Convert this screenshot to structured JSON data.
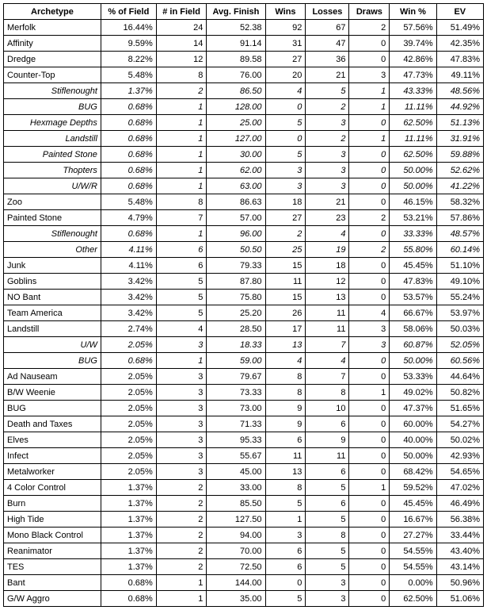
{
  "columns": [
    "Archetype",
    "% of Field",
    "# in Field",
    "Avg. Finish",
    "Wins",
    "Losses",
    "Draws",
    "Win %",
    "EV"
  ],
  "rows": [
    {
      "sub": false,
      "c": [
        "Merfolk",
        "16.44%",
        "24",
        "52.38",
        "92",
        "67",
        "2",
        "57.56%",
        "51.49%"
      ]
    },
    {
      "sub": false,
      "c": [
        "Affinity",
        "9.59%",
        "14",
        "91.14",
        "31",
        "47",
        "0",
        "39.74%",
        "42.35%"
      ]
    },
    {
      "sub": false,
      "c": [
        "Dredge",
        "8.22%",
        "12",
        "89.58",
        "27",
        "36",
        "0",
        "42.86%",
        "47.83%"
      ]
    },
    {
      "sub": false,
      "c": [
        "Counter-Top",
        "5.48%",
        "8",
        "76.00",
        "20",
        "21",
        "3",
        "47.73%",
        "49.11%"
      ]
    },
    {
      "sub": true,
      "c": [
        "Stiflenought",
        "1.37%",
        "2",
        "86.50",
        "4",
        "5",
        "1",
        "43.33%",
        "48.56%"
      ]
    },
    {
      "sub": true,
      "c": [
        "BUG",
        "0.68%",
        "1",
        "128.00",
        "0",
        "2",
        "1",
        "11.11%",
        "44.92%"
      ]
    },
    {
      "sub": true,
      "c": [
        "Hexmage Depths",
        "0.68%",
        "1",
        "25.00",
        "5",
        "3",
        "0",
        "62.50%",
        "51.13%"
      ]
    },
    {
      "sub": true,
      "c": [
        "Landstill",
        "0.68%",
        "1",
        "127.00",
        "0",
        "2",
        "1",
        "11.11%",
        "31.91%"
      ]
    },
    {
      "sub": true,
      "c": [
        "Painted Stone",
        "0.68%",
        "1",
        "30.00",
        "5",
        "3",
        "0",
        "62.50%",
        "59.88%"
      ]
    },
    {
      "sub": true,
      "c": [
        "Thopters",
        "0.68%",
        "1",
        "62.00",
        "3",
        "3",
        "0",
        "50.00%",
        "52.62%"
      ]
    },
    {
      "sub": true,
      "c": [
        "U/W/R",
        "0.68%",
        "1",
        "63.00",
        "3",
        "3",
        "0",
        "50.00%",
        "41.22%"
      ]
    },
    {
      "sub": false,
      "c": [
        "Zoo",
        "5.48%",
        "8",
        "86.63",
        "18",
        "21",
        "0",
        "46.15%",
        "58.32%"
      ]
    },
    {
      "sub": false,
      "c": [
        "Painted Stone",
        "4.79%",
        "7",
        "57.00",
        "27",
        "23",
        "2",
        "53.21%",
        "57.86%"
      ]
    },
    {
      "sub": true,
      "c": [
        "Stiflenought",
        "0.68%",
        "1",
        "96.00",
        "2",
        "4",
        "0",
        "33.33%",
        "48.57%"
      ]
    },
    {
      "sub": true,
      "c": [
        "Other",
        "4.11%",
        "6",
        "50.50",
        "25",
        "19",
        "2",
        "55.80%",
        "60.14%"
      ]
    },
    {
      "sub": false,
      "c": [
        "Junk",
        "4.11%",
        "6",
        "79.33",
        "15",
        "18",
        "0",
        "45.45%",
        "51.10%"
      ]
    },
    {
      "sub": false,
      "c": [
        "Goblins",
        "3.42%",
        "5",
        "87.80",
        "11",
        "12",
        "0",
        "47.83%",
        "49.10%"
      ]
    },
    {
      "sub": false,
      "c": [
        "NO Bant",
        "3.42%",
        "5",
        "75.80",
        "15",
        "13",
        "0",
        "53.57%",
        "55.24%"
      ]
    },
    {
      "sub": false,
      "c": [
        "Team America",
        "3.42%",
        "5",
        "25.20",
        "26",
        "11",
        "4",
        "66.67%",
        "53.97%"
      ]
    },
    {
      "sub": false,
      "c": [
        "Landstill",
        "2.74%",
        "4",
        "28.50",
        "17",
        "11",
        "3",
        "58.06%",
        "50.03%"
      ]
    },
    {
      "sub": true,
      "c": [
        "U/W",
        "2.05%",
        "3",
        "18.33",
        "13",
        "7",
        "3",
        "60.87%",
        "52.05%"
      ]
    },
    {
      "sub": true,
      "c": [
        "BUG",
        "0.68%",
        "1",
        "59.00",
        "4",
        "4",
        "0",
        "50.00%",
        "60.56%"
      ]
    },
    {
      "sub": false,
      "c": [
        "Ad Nauseam",
        "2.05%",
        "3",
        "79.67",
        "8",
        "7",
        "0",
        "53.33%",
        "44.64%"
      ]
    },
    {
      "sub": false,
      "c": [
        "B/W Weenie",
        "2.05%",
        "3",
        "73.33",
        "8",
        "8",
        "1",
        "49.02%",
        "50.82%"
      ]
    },
    {
      "sub": false,
      "c": [
        "BUG",
        "2.05%",
        "3",
        "73.00",
        "9",
        "10",
        "0",
        "47.37%",
        "51.65%"
      ]
    },
    {
      "sub": false,
      "c": [
        "Death and Taxes",
        "2.05%",
        "3",
        "71.33",
        "9",
        "6",
        "0",
        "60.00%",
        "54.27%"
      ]
    },
    {
      "sub": false,
      "c": [
        "Elves",
        "2.05%",
        "3",
        "95.33",
        "6",
        "9",
        "0",
        "40.00%",
        "50.02%"
      ]
    },
    {
      "sub": false,
      "c": [
        "Infect",
        "2.05%",
        "3",
        "55.67",
        "11",
        "11",
        "0",
        "50.00%",
        "42.93%"
      ]
    },
    {
      "sub": false,
      "c": [
        "Metalworker",
        "2.05%",
        "3",
        "45.00",
        "13",
        "6",
        "0",
        "68.42%",
        "54.65%"
      ]
    },
    {
      "sub": false,
      "c": [
        "4 Color Control",
        "1.37%",
        "2",
        "33.00",
        "8",
        "5",
        "1",
        "59.52%",
        "47.02%"
      ]
    },
    {
      "sub": false,
      "c": [
        "Burn",
        "1.37%",
        "2",
        "85.50",
        "5",
        "6",
        "0",
        "45.45%",
        "46.49%"
      ]
    },
    {
      "sub": false,
      "c": [
        "High Tide",
        "1.37%",
        "2",
        "127.50",
        "1",
        "5",
        "0",
        "16.67%",
        "56.38%"
      ]
    },
    {
      "sub": false,
      "c": [
        "Mono Black Control",
        "1.37%",
        "2",
        "94.00",
        "3",
        "8",
        "0",
        "27.27%",
        "33.44%"
      ]
    },
    {
      "sub": false,
      "c": [
        "Reanimator",
        "1.37%",
        "2",
        "70.00",
        "6",
        "5",
        "0",
        "54.55%",
        "43.40%"
      ]
    },
    {
      "sub": false,
      "c": [
        "TES",
        "1.37%",
        "2",
        "72.50",
        "6",
        "5",
        "0",
        "54.55%",
        "43.14%"
      ]
    },
    {
      "sub": false,
      "c": [
        "Bant",
        "0.68%",
        "1",
        "144.00",
        "0",
        "3",
        "0",
        "0.00%",
        "50.96%"
      ]
    },
    {
      "sub": false,
      "c": [
        "G/W Aggro",
        "0.68%",
        "1",
        "35.00",
        "5",
        "3",
        "0",
        "62.50%",
        "51.06%"
      ]
    }
  ]
}
